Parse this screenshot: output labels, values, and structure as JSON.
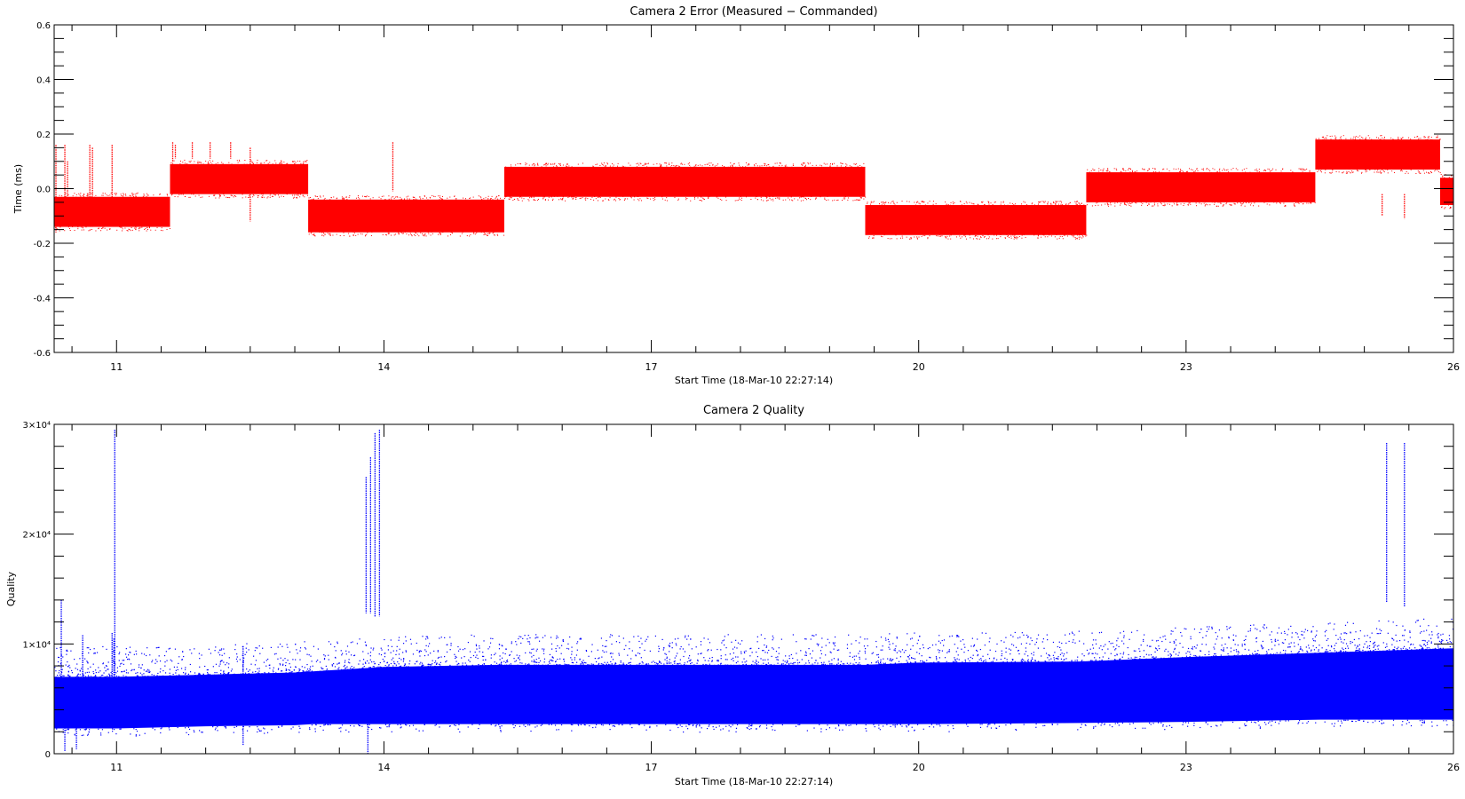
{
  "chart_data": [
    {
      "type": "scatter",
      "title": "Camera 2 Error (Measured − Commanded)",
      "xlabel": "Start Time (18-Mar-10 22:27:14)",
      "ylabel": "Time (ms)",
      "xlim": [
        10.3,
        26.0
      ],
      "ylim": [
        -0.6,
        0.6
      ],
      "x_ticks": [
        11,
        14,
        17,
        20,
        23,
        26
      ],
      "x_tick_labels": [
        "11",
        "14",
        "17",
        "20",
        "23",
        "26"
      ],
      "y_ticks": [
        -0.6,
        -0.4,
        -0.2,
        0.0,
        0.2,
        0.4,
        0.6
      ],
      "y_tick_labels": [
        "-0.6",
        "-0.4",
        "-0.2",
        "0.0",
        "0.2",
        "0.4",
        "0.6"
      ],
      "grid": false,
      "color": "#ff0000",
      "segments": [
        {
          "x_start": 10.3,
          "x_end": 11.6,
          "y_low": -0.14,
          "y_high": -0.03
        },
        {
          "x_start": 11.6,
          "x_end": 13.15,
          "y_low": -0.02,
          "y_high": 0.09
        },
        {
          "x_start": 13.15,
          "x_end": 15.35,
          "y_low": -0.16,
          "y_high": -0.04
        },
        {
          "x_start": 15.35,
          "x_end": 19.4,
          "y_low": -0.03,
          "y_high": 0.08
        },
        {
          "x_start": 19.4,
          "x_end": 21.88,
          "y_low": -0.17,
          "y_high": -0.06
        },
        {
          "x_start": 21.88,
          "x_end": 24.45,
          "y_low": -0.05,
          "y_high": 0.06
        },
        {
          "x_start": 24.45,
          "x_end": 25.85,
          "y_low": 0.07,
          "y_high": 0.18
        },
        {
          "x_start": 25.85,
          "x_end": 26.0,
          "y_low": -0.06,
          "y_high": 0.04
        }
      ],
      "spikes": [
        {
          "x": 10.32,
          "y_low": -0.16,
          "y_high": 0.16
        },
        {
          "x": 10.42,
          "y_low": -0.12,
          "y_high": 0.16
        },
        {
          "x": 10.45,
          "y_low": -0.05,
          "y_high": 0.1
        },
        {
          "x": 10.7,
          "y_low": -0.05,
          "y_high": 0.16
        },
        {
          "x": 10.73,
          "y_low": -0.05,
          "y_high": 0.15
        },
        {
          "x": 10.95,
          "y_low": -0.1,
          "y_high": 0.16
        },
        {
          "x": 11.63,
          "y_low": 0.1,
          "y_high": 0.17
        },
        {
          "x": 11.66,
          "y_low": 0.11,
          "y_high": 0.16
        },
        {
          "x": 11.85,
          "y_low": 0.11,
          "y_high": 0.17
        },
        {
          "x": 12.05,
          "y_low": 0.11,
          "y_high": 0.17
        },
        {
          "x": 12.28,
          "y_low": 0.11,
          "y_high": 0.17
        },
        {
          "x": 12.5,
          "y_low": -0.12,
          "y_high": 0.15
        },
        {
          "x": 14.1,
          "y_low": -0.01,
          "y_high": 0.17
        },
        {
          "x": 25.2,
          "y_low": -0.1,
          "y_high": -0.02
        },
        {
          "x": 25.45,
          "y_low": -0.11,
          "y_high": -0.02
        }
      ]
    },
    {
      "type": "scatter",
      "title": "Camera 2 Quality",
      "xlabel": "Start Time (18-Mar-10 22:27:14)",
      "ylabel": "Quality",
      "xlim": [
        10.3,
        26.0
      ],
      "ylim": [
        0,
        30000
      ],
      "x_ticks": [
        11,
        14,
        17,
        20,
        23,
        26
      ],
      "x_tick_labels": [
        "11",
        "14",
        "17",
        "20",
        "23",
        "26"
      ],
      "y_ticks": [
        0,
        10000,
        20000,
        30000
      ],
      "y_tick_labels": [
        "0",
        "1×10⁴",
        "2×10⁴",
        "3×10⁴"
      ],
      "grid": false,
      "color": "#0000ff",
      "band": [
        {
          "x": 10.3,
          "y_low": 2300,
          "y_high": 7000
        },
        {
          "x": 11.0,
          "y_low": 2300,
          "y_high": 7000
        },
        {
          "x": 12.0,
          "y_low": 2500,
          "y_high": 7200
        },
        {
          "x": 13.0,
          "y_low": 2600,
          "y_high": 7400
        },
        {
          "x": 13.2,
          "y_low": 2700,
          "y_high": 7500
        },
        {
          "x": 14.0,
          "y_low": 2700,
          "y_high": 7900
        },
        {
          "x": 15.3,
          "y_low": 2700,
          "y_high": 8100
        },
        {
          "x": 17.0,
          "y_low": 2700,
          "y_high": 8100
        },
        {
          "x": 19.4,
          "y_low": 2700,
          "y_high": 8100
        },
        {
          "x": 20.0,
          "y_low": 2700,
          "y_high": 8300
        },
        {
          "x": 21.8,
          "y_low": 2800,
          "y_high": 8400
        },
        {
          "x": 23.0,
          "y_low": 2900,
          "y_high": 8800
        },
        {
          "x": 24.5,
          "y_low": 3100,
          "y_high": 9200
        },
        {
          "x": 26.0,
          "y_low": 3100,
          "y_high": 9600
        }
      ],
      "spikes": [
        {
          "x": 10.38,
          "y_low": 4000,
          "y_high": 14000
        },
        {
          "x": 10.42,
          "y_low": 200,
          "y_high": 3000
        },
        {
          "x": 10.55,
          "y_low": 400,
          "y_high": 2300
        },
        {
          "x": 10.62,
          "y_low": 7000,
          "y_high": 10800
        },
        {
          "x": 10.95,
          "y_low": 7000,
          "y_high": 11000
        },
        {
          "x": 10.97,
          "y_low": 7000,
          "y_high": 10500
        },
        {
          "x": 10.98,
          "y_low": 6000,
          "y_high": 29500
        },
        {
          "x": 12.42,
          "y_low": 800,
          "y_high": 9800
        },
        {
          "x": 13.8,
          "y_low": 12800,
          "y_high": 25200
        },
        {
          "x": 13.85,
          "y_low": 12800,
          "y_high": 27000
        },
        {
          "x": 13.9,
          "y_low": 12500,
          "y_high": 29200
        },
        {
          "x": 13.95,
          "y_low": 12500,
          "y_high": 29500
        },
        {
          "x": 13.82,
          "y_low": 0,
          "y_high": 2700
        },
        {
          "x": 25.25,
          "y_low": 13800,
          "y_high": 28300
        },
        {
          "x": 25.45,
          "y_low": 13400,
          "y_high": 28300
        }
      ]
    }
  ]
}
